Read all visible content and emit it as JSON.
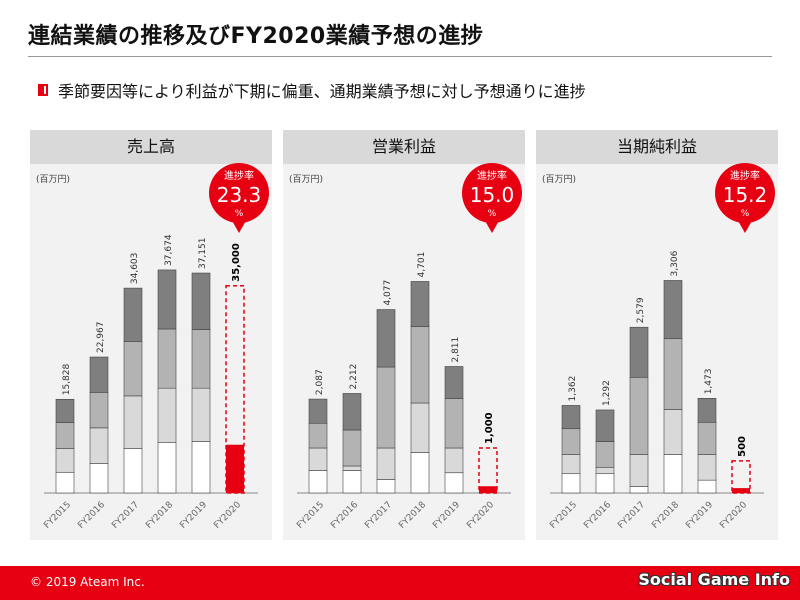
{
  "title": "連結業績の推移及びFY2020業績予想の進捗",
  "subtitle": "季節要因等により利益が下期に偏重、通期業績予想に対し予想通りに進捗",
  "footer": {
    "copyright": "© 2019 Ateam Inc.",
    "watermark": "Social Game Info"
  },
  "colors": {
    "accent": "#e60012",
    "seg1": "#ffffff",
    "seg2": "#d9d9d9",
    "seg3": "#b3b3b3",
    "seg4": "#7f7f7f"
  },
  "chart_data": [
    {
      "type": "bar",
      "title": "売上高",
      "unit": "(百万円)",
      "badge": {
        "label": "進捗率",
        "value": "23.3",
        "suffix": "%"
      },
      "categories": [
        "FY2015",
        "FY2016",
        "FY2017",
        "FY2018",
        "FY2019",
        "FY2020"
      ],
      "totals": [
        15828,
        22967,
        34603,
        37674,
        37151,
        35000
      ],
      "total_labels": [
        "15,828",
        "22,967",
        "34,603",
        "37,674",
        "37,151",
        "35,000"
      ],
      "quarters": [
        [
          3500,
          4000,
          4400,
          3928
        ],
        [
          5000,
          6000,
          6000,
          5967
        ],
        [
          7500,
          8900,
          9200,
          9003
        ],
        [
          8500,
          9200,
          10000,
          9974
        ],
        [
          8700,
          9000,
          9900,
          9551
        ],
        [
          8155,
          0,
          0,
          0
        ]
      ],
      "forecast_index": 5,
      "ylim": [
        0,
        38000
      ]
    },
    {
      "type": "bar",
      "title": "営業利益",
      "unit": "(百万円)",
      "badge": {
        "label": "進捗率",
        "value": "15.0",
        "suffix": "%"
      },
      "categories": [
        "FY2015",
        "FY2016",
        "FY2017",
        "FY2018",
        "FY2019",
        "FY2020"
      ],
      "totals": [
        2087,
        2212,
        4077,
        4701,
        2811,
        1000
      ],
      "total_labels": [
        "2,087",
        "2,212",
        "4,077",
        "4,701",
        "2,811",
        "1,000"
      ],
      "quarters": [
        [
          500,
          500,
          550,
          537
        ],
        [
          500,
          100,
          800,
          812
        ],
        [
          300,
          700,
          1800,
          1277
        ],
        [
          900,
          1100,
          1700,
          1001
        ],
        [
          450,
          550,
          1100,
          711
        ],
        [
          150,
          0,
          0,
          0
        ]
      ],
      "forecast_index": 5,
      "ylim": [
        0,
        5000
      ]
    },
    {
      "type": "bar",
      "title": "当期純利益",
      "unit": "(百万円)",
      "badge": {
        "label": "進捗率",
        "value": "15.2",
        "suffix": "%"
      },
      "categories": [
        "FY2015",
        "FY2016",
        "FY2017",
        "FY2018",
        "FY2019",
        "FY2020"
      ],
      "totals": [
        1362,
        1292,
        2579,
        3306,
        1473,
        500
      ],
      "total_labels": [
        "1,362",
        "1,292",
        "2,579",
        "3,306",
        "1,473",
        "500"
      ],
      "quarters": [
        [
          300,
          300,
          400,
          362
        ],
        [
          300,
          100,
          400,
          492
        ],
        [
          100,
          500,
          1200,
          779
        ],
        [
          600,
          700,
          1100,
          906
        ],
        [
          200,
          400,
          500,
          373
        ],
        [
          76,
          0,
          0,
          0
        ]
      ],
      "forecast_index": 5,
      "ylim": [
        0,
        3500
      ]
    }
  ]
}
